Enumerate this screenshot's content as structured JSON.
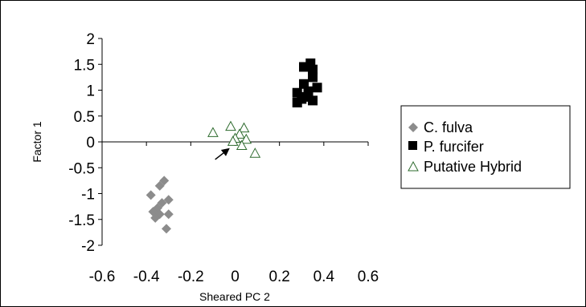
{
  "chart_data": {
    "type": "scatter",
    "title": "",
    "xlabel": "Sheared PC 2",
    "ylabel": "Factor 1",
    "xlim": [
      -0.6,
      0.6
    ],
    "ylim": [
      -2,
      2
    ],
    "x_ticks": [
      "-0.6",
      "-0.4",
      "-0.2",
      "0",
      "0.2",
      "0.4",
      "0.6"
    ],
    "y_ticks": [
      "2",
      "1.5",
      "1",
      "0.5",
      "0",
      "-0.5",
      "-1",
      "-1.5",
      "-2"
    ],
    "x_tick_values": [
      -0.6,
      -0.4,
      -0.2,
      0,
      0.2,
      0.4,
      0.6
    ],
    "y_tick_values": [
      2,
      1.5,
      1,
      0.5,
      0,
      -0.5,
      -1,
      -1.5,
      -2
    ],
    "grid": false,
    "legend_position": "right",
    "series": [
      {
        "name": "C. fulva",
        "marker": "diamond",
        "color": "#8c8c8c",
        "points": [
          [
            -0.32,
            -0.75
          ],
          [
            -0.34,
            -0.85
          ],
          [
            -0.38,
            -1.03
          ],
          [
            -0.3,
            -1.12
          ],
          [
            -0.33,
            -1.18
          ],
          [
            -0.35,
            -1.28
          ],
          [
            -0.37,
            -1.35
          ],
          [
            -0.34,
            -1.4
          ],
          [
            -0.3,
            -1.4
          ],
          [
            -0.36,
            -1.47
          ],
          [
            -0.31,
            -1.68
          ]
        ]
      },
      {
        "name": "P. furcifer",
        "marker": "square",
        "color": "#000000",
        "points": [
          [
            0.34,
            1.52
          ],
          [
            0.31,
            1.45
          ],
          [
            0.35,
            1.4
          ],
          [
            0.35,
            1.25
          ],
          [
            0.31,
            1.12
          ],
          [
            0.37,
            1.05
          ],
          [
            0.33,
            0.98
          ],
          [
            0.28,
            0.95
          ],
          [
            0.32,
            0.87
          ],
          [
            0.3,
            0.83
          ],
          [
            0.35,
            0.8
          ],
          [
            0.28,
            0.76
          ]
        ]
      },
      {
        "name": "Putative Hybrid",
        "marker": "triangle",
        "color": "#2e6b2e",
        "points": [
          [
            -0.02,
            0.3
          ],
          [
            0.04,
            0.27
          ],
          [
            -0.1,
            0.18
          ],
          [
            0.02,
            0.15
          ],
          [
            0.0,
            0.07
          ],
          [
            0.05,
            0.05
          ],
          [
            -0.01,
            0.01
          ],
          [
            0.03,
            -0.07
          ],
          [
            0.09,
            -0.22
          ]
        ]
      }
    ],
    "annotations": [
      {
        "type": "arrow",
        "from": [
          -0.09,
          -0.34
        ],
        "to": [
          -0.03,
          -0.14
        ]
      }
    ]
  }
}
